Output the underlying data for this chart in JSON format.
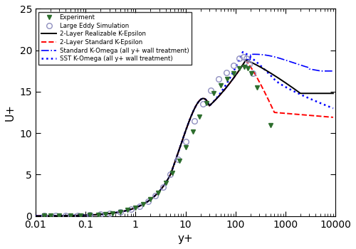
{
  "xlabel": "y+",
  "ylabel": "U+",
  "xlim": [
    0.01,
    10000
  ],
  "ylim": [
    0,
    25
  ],
  "yticks": [
    0,
    5,
    10,
    15,
    20,
    25
  ],
  "xtick_labels": [
    "0.01",
    "1",
    "100",
    "10000"
  ],
  "xtick_vals": [
    0.01,
    1,
    100,
    10000
  ],
  "legend_entries": [
    "Experiment",
    "Large Eddy Simulation",
    "2-Layer Realizable K-Epsilon",
    "2-Layer Standard K-Epsilon",
    "Standard K-Omega (all y+ wall treatment)",
    "SST K-Omega (all y+ wall treatment)"
  ],
  "marker_color_exp": "#2d6e2d",
  "marker_color_les": "#9090c0",
  "fig_width": 5.0,
  "fig_height": 3.5,
  "dpi": 100
}
